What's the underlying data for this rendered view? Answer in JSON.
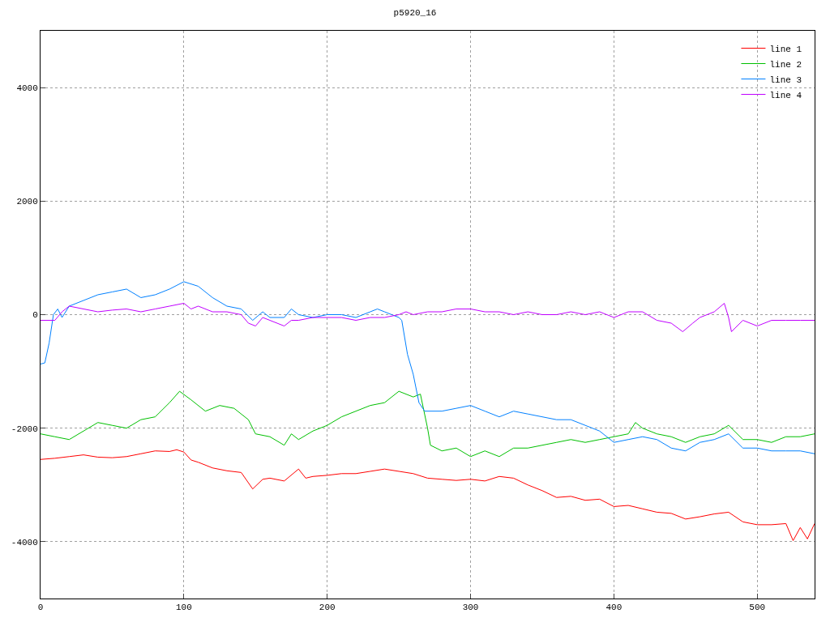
{
  "chart_data": {
    "type": "line",
    "title": "p5920_16",
    "xlim": [
      0,
      540
    ],
    "ylim": [
      -5000,
      5000
    ],
    "xticks": [
      0,
      100,
      200,
      300,
      400,
      500
    ],
    "yticks": [
      -4000,
      -2000,
      0,
      2000,
      4000
    ],
    "grid": true,
    "legend": "top right",
    "marker": "none",
    "line_style": "solid",
    "series": [
      {
        "name": "line 1",
        "color": "#ff0000",
        "x": [
          0,
          10,
          20,
          30,
          40,
          50,
          60,
          70,
          80,
          90,
          95,
          100,
          105,
          110,
          120,
          130,
          140,
          148,
          155,
          160,
          170,
          180,
          185,
          190,
          200,
          210,
          220,
          230,
          240,
          250,
          260,
          270,
          280,
          290,
          300,
          310,
          320,
          330,
          340,
          350,
          360,
          370,
          380,
          390,
          400,
          410,
          420,
          430,
          440,
          450,
          460,
          470,
          480,
          490,
          500,
          510,
          520,
          525,
          530,
          535,
          540
        ],
        "values": [
          -2550,
          -2530,
          -2500,
          -2470,
          -2510,
          -2520,
          -2500,
          -2450,
          -2400,
          -2410,
          -2380,
          -2420,
          -2560,
          -2600,
          -2700,
          -2750,
          -2780,
          -3070,
          -2900,
          -2880,
          -2930,
          -2720,
          -2880,
          -2850,
          -2830,
          -2800,
          -2800,
          -2760,
          -2720,
          -2760,
          -2800,
          -2880,
          -2900,
          -2920,
          -2900,
          -2930,
          -2850,
          -2880,
          -3000,
          -3100,
          -3220,
          -3200,
          -3270,
          -3250,
          -3380,
          -3360,
          -3420,
          -3480,
          -3500,
          -3600,
          -3560,
          -3510,
          -3480,
          -3650,
          -3700,
          -3700,
          -3680,
          -3980,
          -3750,
          -3950,
          -3680
        ]
      },
      {
        "name": "line 2",
        "color": "#00c000",
        "x": [
          0,
          10,
          20,
          30,
          40,
          50,
          60,
          70,
          80,
          90,
          97,
          105,
          115,
          125,
          135,
          145,
          150,
          160,
          170,
          175,
          180,
          190,
          200,
          210,
          220,
          230,
          240,
          250,
          260,
          265,
          270,
          272,
          280,
          290,
          300,
          310,
          320,
          330,
          340,
          350,
          360,
          370,
          380,
          390,
          400,
          410,
          415,
          420,
          430,
          440,
          450,
          460,
          470,
          480,
          490,
          500,
          510,
          520,
          530,
          540
        ],
        "values": [
          -2100,
          -2150,
          -2200,
          -2050,
          -1900,
          -1950,
          -2000,
          -1850,
          -1800,
          -1550,
          -1350,
          -1500,
          -1700,
          -1600,
          -1650,
          -1850,
          -2100,
          -2150,
          -2300,
          -2100,
          -2200,
          -2050,
          -1950,
          -1800,
          -1700,
          -1600,
          -1550,
          -1350,
          -1450,
          -1400,
          -2000,
          -2300,
          -2400,
          -2350,
          -2500,
          -2400,
          -2500,
          -2350,
          -2350,
          -2300,
          -2250,
          -2200,
          -2250,
          -2200,
          -2150,
          -2100,
          -1900,
          -2000,
          -2100,
          -2150,
          -2250,
          -2150,
          -2100,
          -1950,
          -2200,
          -2200,
          -2250,
          -2150,
          -2150,
          -2100
        ]
      },
      {
        "name": "line 3",
        "color": "#0080ff",
        "x": [
          0,
          3,
          6,
          9,
          12,
          15,
          20,
          30,
          40,
          50,
          60,
          70,
          80,
          90,
          100,
          110,
          120,
          130,
          140,
          148,
          155,
          160,
          170,
          175,
          180,
          190,
          200,
          210,
          220,
          230,
          235,
          240,
          245,
          250,
          252,
          256,
          260,
          264,
          268,
          280,
          290,
          300,
          310,
          320,
          330,
          340,
          350,
          360,
          370,
          380,
          390,
          400,
          410,
          420,
          430,
          440,
          450,
          460,
          470,
          480,
          490,
          500,
          510,
          520,
          530,
          540
        ],
        "values": [
          -870,
          -850,
          -500,
          0,
          100,
          -50,
          150,
          250,
          350,
          400,
          450,
          300,
          350,
          450,
          580,
          500,
          300,
          150,
          100,
          -100,
          50,
          -50,
          -50,
          100,
          0,
          -50,
          0,
          0,
          -50,
          50,
          100,
          50,
          0,
          -50,
          -100,
          -700,
          -1050,
          -1550,
          -1700,
          -1700,
          -1650,
          -1600,
          -1700,
          -1800,
          -1700,
          -1750,
          -1800,
          -1850,
          -1850,
          -1950,
          -2050,
          -2250,
          -2200,
          -2150,
          -2200,
          -2350,
          -2400,
          -2250,
          -2200,
          -2100,
          -2350,
          -2350,
          -2400,
          -2400,
          -2400,
          -2450
        ]
      },
      {
        "name": "line 4",
        "color": "#c000ff",
        "x": [
          0,
          10,
          15,
          20,
          30,
          40,
          50,
          60,
          70,
          80,
          90,
          100,
          105,
          110,
          120,
          130,
          140,
          145,
          150,
          155,
          160,
          170,
          175,
          180,
          190,
          200,
          210,
          220,
          230,
          240,
          250,
          255,
          260,
          270,
          280,
          290,
          300,
          310,
          320,
          330,
          340,
          350,
          360,
          370,
          380,
          390,
          400,
          410,
          420,
          430,
          440,
          448,
          455,
          460,
          470,
          477,
          480,
          482,
          490,
          500,
          510,
          520,
          530,
          540
        ],
        "values": [
          -100,
          -100,
          50,
          150,
          100,
          50,
          80,
          100,
          50,
          100,
          150,
          200,
          100,
          150,
          50,
          50,
          0,
          -150,
          -200,
          -50,
          -100,
          -200,
          -100,
          -100,
          -50,
          -50,
          -50,
          -100,
          -50,
          -50,
          0,
          50,
          0,
          50,
          50,
          100,
          100,
          50,
          50,
          0,
          50,
          0,
          0,
          50,
          0,
          50,
          -50,
          50,
          50,
          -100,
          -150,
          -300,
          -150,
          -50,
          50,
          200,
          -50,
          -300,
          -100,
          -200,
          -100,
          -100,
          -100,
          -100
        ]
      }
    ]
  }
}
